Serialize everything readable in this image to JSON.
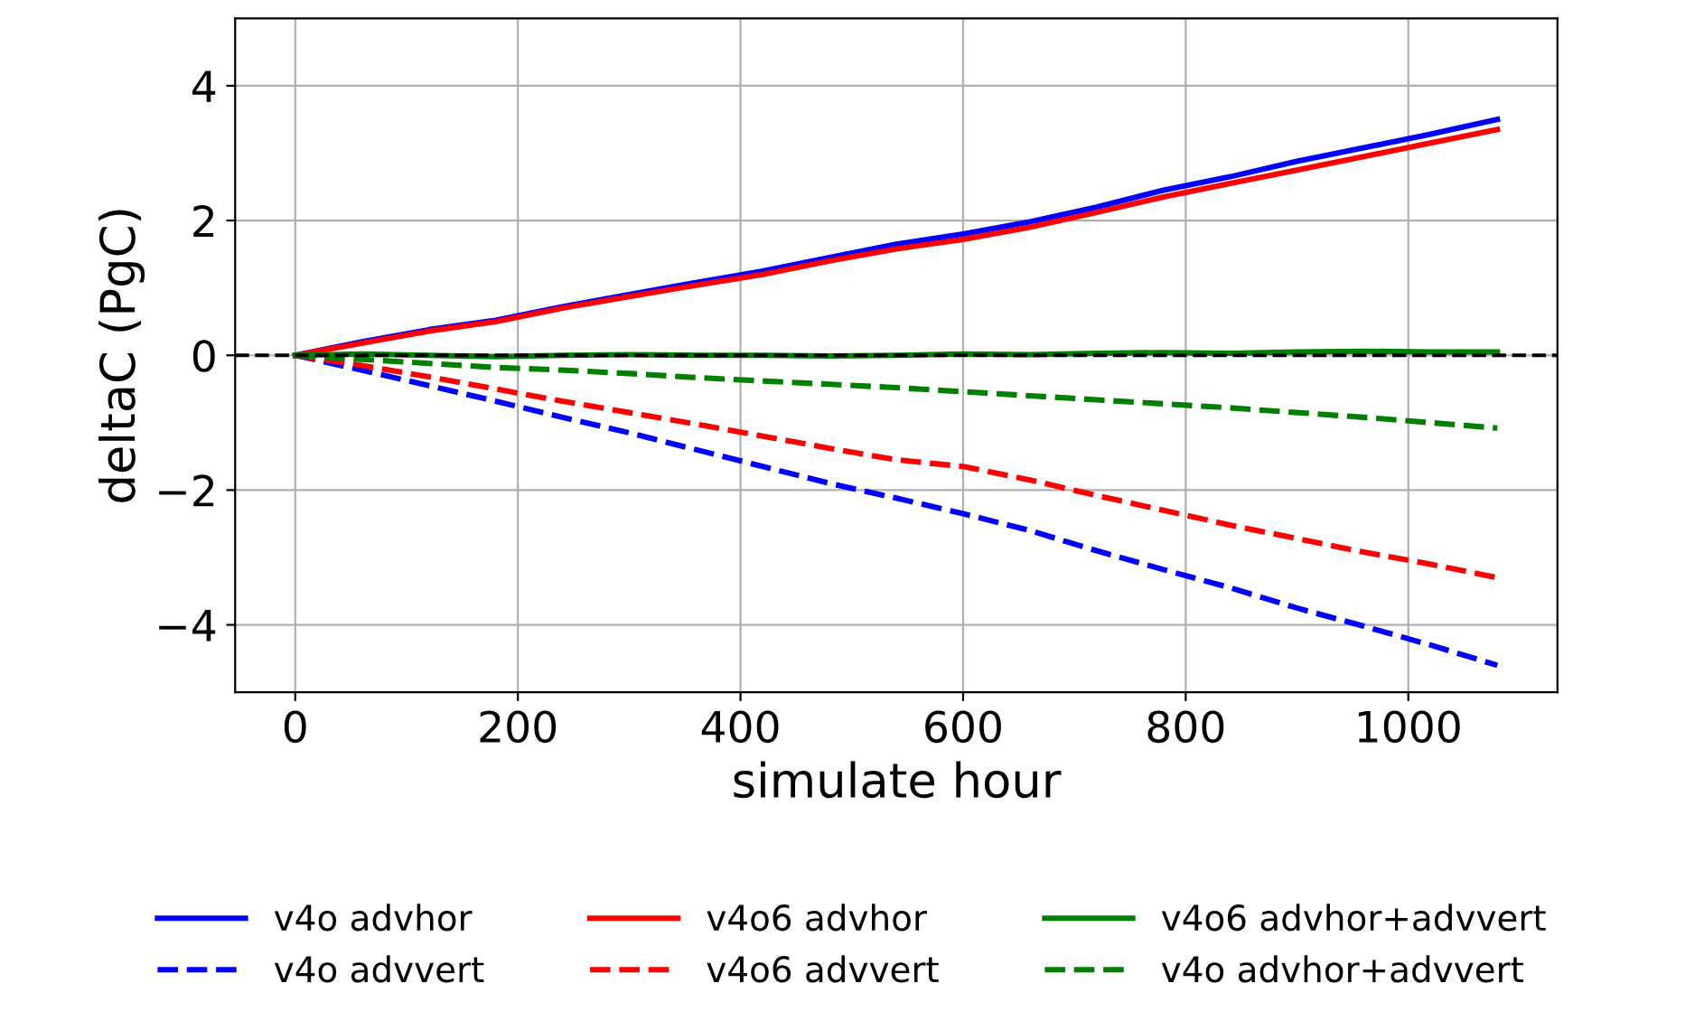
{
  "chart_data": {
    "type": "line",
    "xlabel": "simulate hour",
    "ylabel": "deltaC (PgC)",
    "x": [
      0,
      60,
      120,
      180,
      240,
      300,
      360,
      420,
      480,
      540,
      600,
      660,
      720,
      780,
      840,
      900,
      960,
      1020,
      1080
    ],
    "series": [
      {
        "name": "v4o advhor",
        "color": "#0000ff",
        "line_style": "solid",
        "values": [
          0,
          0.2,
          0.38,
          0.52,
          0.72,
          0.9,
          1.08,
          1.25,
          1.45,
          1.65,
          1.8,
          1.98,
          2.2,
          2.45,
          2.65,
          2.88,
          3.08,
          3.28,
          3.5
        ]
      },
      {
        "name": "v4o advvert",
        "color": "#0000ff",
        "line_style": "dashed",
        "values": [
          0,
          -0.22,
          -0.45,
          -0.68,
          -0.92,
          -1.15,
          -1.4,
          -1.65,
          -1.9,
          -2.12,
          -2.35,
          -2.6,
          -2.9,
          -3.18,
          -3.45,
          -3.75,
          -4.02,
          -4.3,
          -4.6
        ]
      },
      {
        "name": "v4o6 advhor",
        "color": "#ff0000",
        "line_style": "solid",
        "values": [
          0,
          0.18,
          0.36,
          0.5,
          0.7,
          0.87,
          1.04,
          1.2,
          1.4,
          1.58,
          1.72,
          1.9,
          2.12,
          2.35,
          2.55,
          2.75,
          2.95,
          3.15,
          3.35
        ]
      },
      {
        "name": "v4o6 advvert",
        "color": "#ff0000",
        "line_style": "dashed",
        "values": [
          0,
          -0.15,
          -0.32,
          -0.5,
          -0.68,
          -0.85,
          -1.02,
          -1.2,
          -1.38,
          -1.55,
          -1.65,
          -1.85,
          -2.08,
          -2.3,
          -2.52,
          -2.72,
          -2.92,
          -3.1,
          -3.3
        ]
      },
      {
        "name": "v4o6 advhor+advvert",
        "color": "#008000",
        "line_style": "solid",
        "values": [
          0,
          0.02,
          0.0,
          -0.02,
          0.0,
          0.01,
          0.0,
          0.0,
          -0.01,
          0.0,
          0.02,
          0.01,
          0.03,
          0.04,
          0.03,
          0.05,
          0.06,
          0.05,
          0.05
        ]
      },
      {
        "name": "v4o advhor+advvert",
        "color": "#008000",
        "line_style": "dashed",
        "values": [
          0,
          -0.06,
          -0.12,
          -0.18,
          -0.22,
          -0.27,
          -0.33,
          -0.38,
          -0.43,
          -0.48,
          -0.54,
          -0.6,
          -0.66,
          -0.72,
          -0.78,
          -0.85,
          -0.92,
          -1.0,
          -1.08
        ]
      }
    ],
    "xlim": [
      -54,
      1134
    ],
    "xticks": [
      0,
      200,
      400,
      600,
      800,
      1000
    ],
    "ylim": [
      -5,
      5
    ],
    "yticks": [
      {
        "value": -4,
        "label": "−4"
      },
      {
        "value": -2,
        "label": "−2"
      },
      0,
      2,
      4
    ],
    "ref_lines": [
      {
        "axis": "y",
        "value": 0,
        "color": "#000000",
        "line_style": "dashed"
      }
    ],
    "grid": true,
    "legend": "bottom"
  }
}
